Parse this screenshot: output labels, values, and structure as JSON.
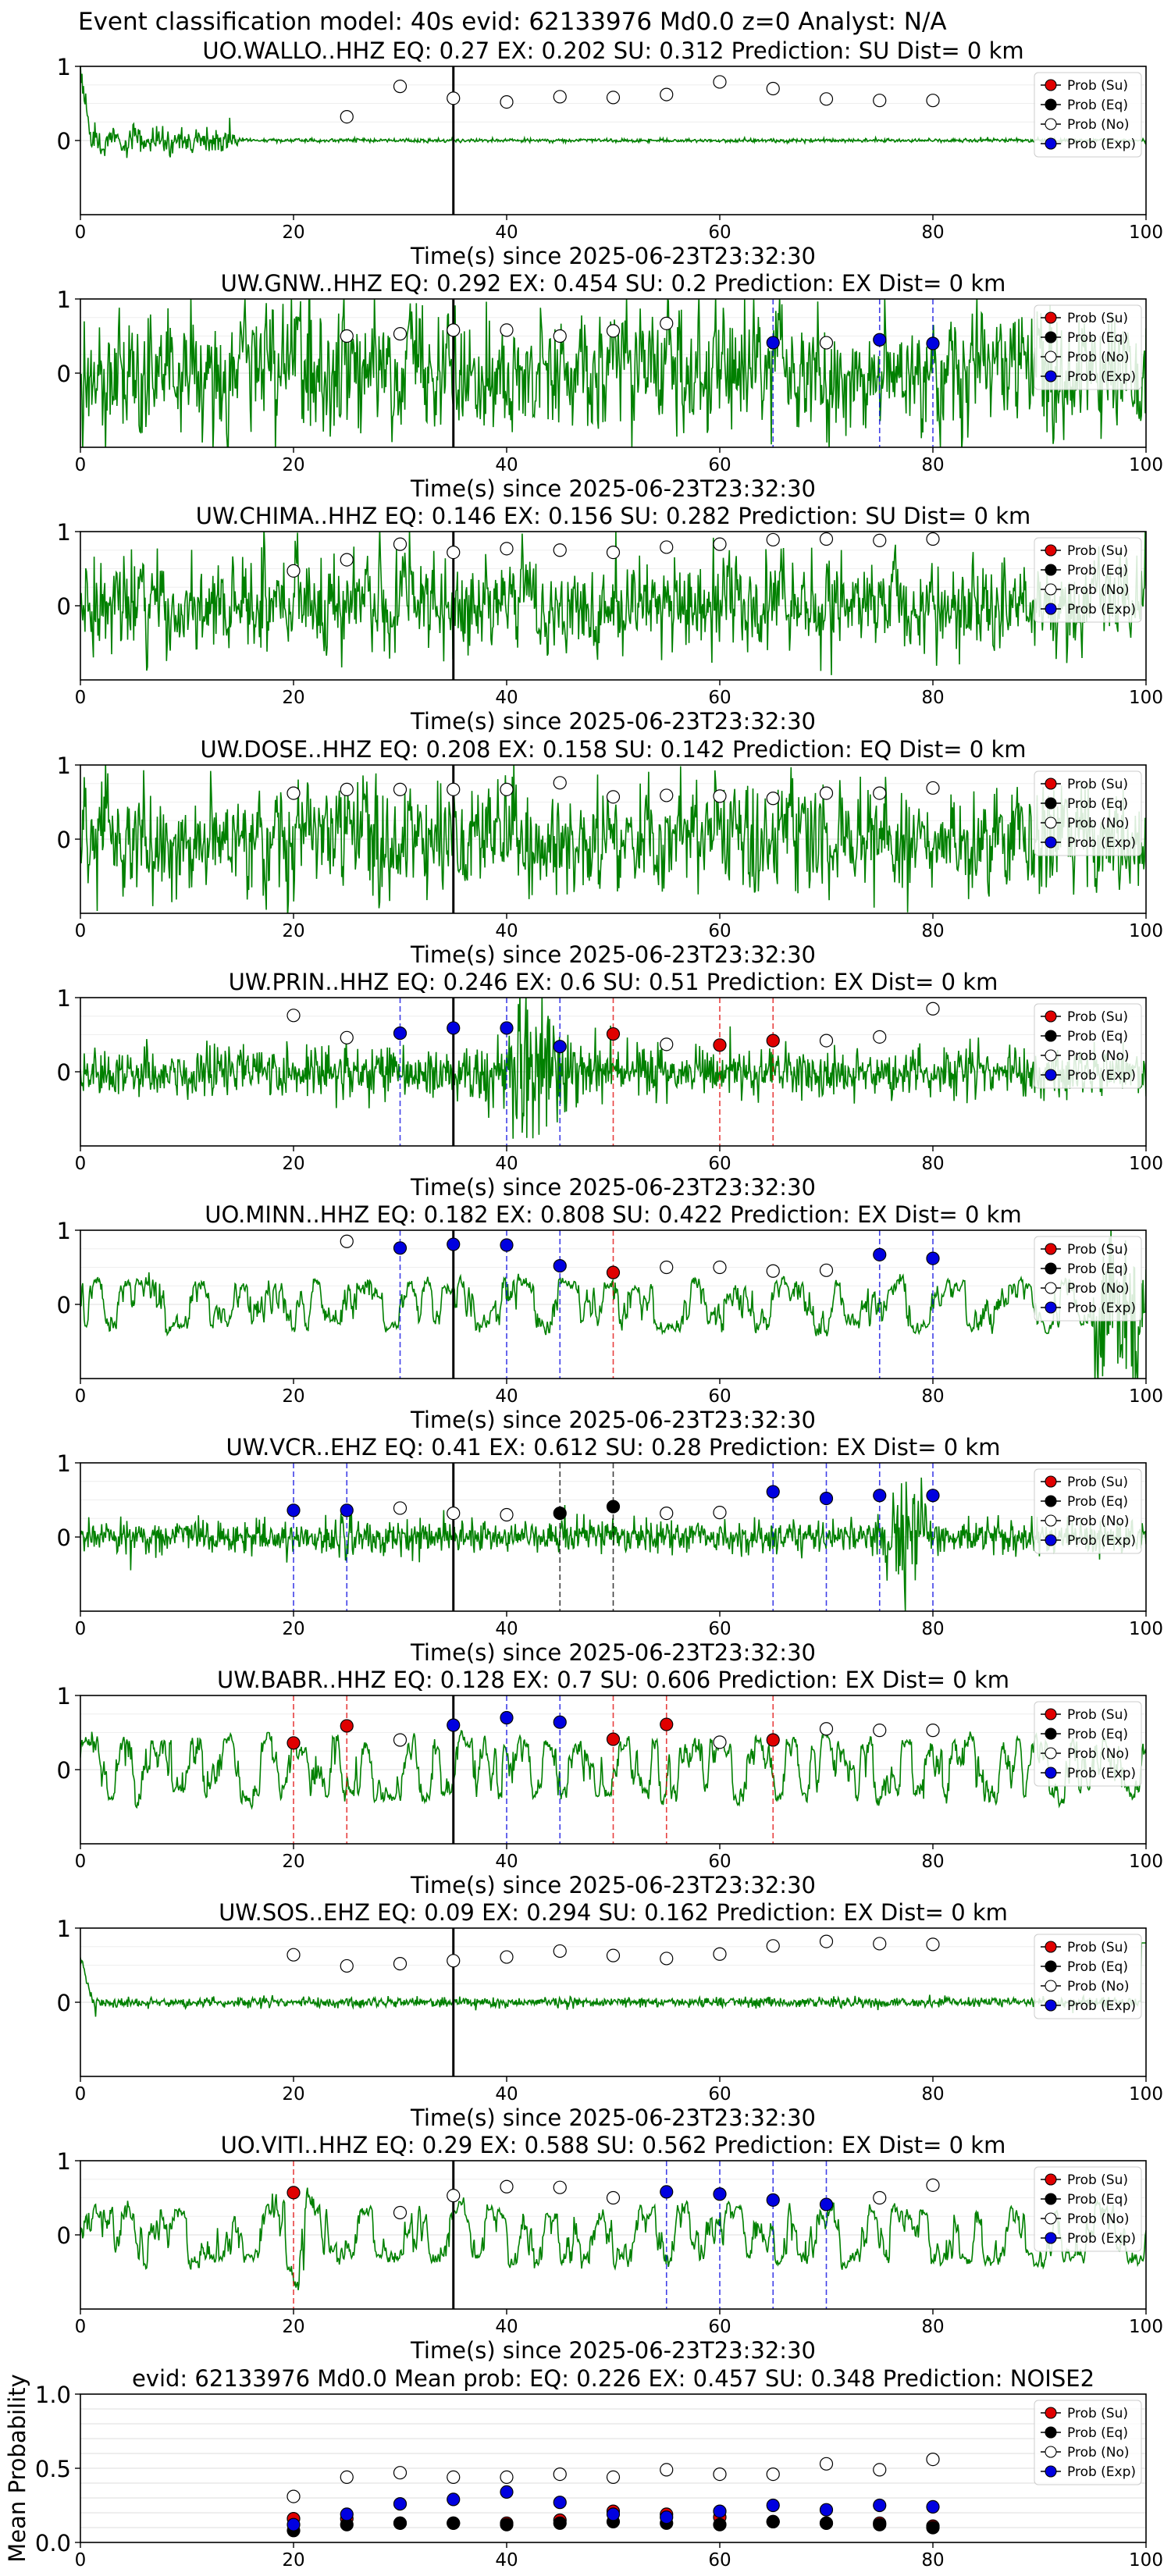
{
  "figure_title": "Event classification model: 40s evid: 62133976 Md0.0 z=0 Analyst: N/A",
  "axis_xlabel": "Time(s) since 2025-06-23T23:32:30",
  "legend": [
    {
      "label": "Prob (Su)",
      "color": "#e00000"
    },
    {
      "label": "Prob (Eq)",
      "color": "#000000"
    },
    {
      "label": "Prob (No)",
      "color": "#ffffff"
    },
    {
      "label": "Prob (Exp)",
      "color": "#0000e0"
    }
  ],
  "colors": {
    "waveform": "#008000",
    "marker_line": "#000000",
    "grid": "#dddddd"
  },
  "chart_data": [
    {
      "type": "line",
      "title": "UO.WALLO..HHZ   EQ: 0.27  EX: 0.202  SU: 0.312   Prediction: SU    Dist= 0 km",
      "station": "UO.WALLO..HHZ",
      "eq": 0.27,
      "ex": 0.202,
      "su": 0.312,
      "prediction": "SU",
      "dist": "0 km",
      "xlim": [
        0,
        100
      ],
      "ylim": [
        -1,
        1
      ],
      "xticks": [
        0,
        20,
        40,
        60,
        80,
        100
      ],
      "yticks": [
        0,
        1
      ],
      "signal": "decay",
      "amplitude": 0.05,
      "seed": 3,
      "arrival_time": 35,
      "points": [
        {
          "x": 25,
          "y": 0.32,
          "cls": "No"
        },
        {
          "x": 30,
          "y": 0.73,
          "cls": "No"
        },
        {
          "x": 35,
          "y": 0.57,
          "cls": "No"
        },
        {
          "x": 40,
          "y": 0.52,
          "cls": "No"
        },
        {
          "x": 45,
          "y": 0.59,
          "cls": "No"
        },
        {
          "x": 50,
          "y": 0.58,
          "cls": "No"
        },
        {
          "x": 55,
          "y": 0.62,
          "cls": "No"
        },
        {
          "x": 60,
          "y": 0.79,
          "cls": "No"
        },
        {
          "x": 65,
          "y": 0.7,
          "cls": "No"
        },
        {
          "x": 70,
          "y": 0.56,
          "cls": "No"
        },
        {
          "x": 75,
          "y": 0.54,
          "cls": "No"
        },
        {
          "x": 80,
          "y": 0.54,
          "cls": "No"
        }
      ]
    },
    {
      "type": "line",
      "title": "UW.GNW..HHZ   EQ: 0.292  EX: 0.454  SU: 0.2   Prediction: EX    Dist= 0 km",
      "station": "UW.GNW..HHZ",
      "eq": 0.292,
      "ex": 0.454,
      "su": 0.2,
      "prediction": "EX",
      "dist": "0 km",
      "xlim": [
        0,
        100
      ],
      "ylim": [
        -1,
        1
      ],
      "xticks": [
        0,
        20,
        40,
        60,
        80,
        100
      ],
      "yticks": [
        0,
        1
      ],
      "signal": "noisy",
      "amplitude": 0.55,
      "seed": 7,
      "arrival_time": 35,
      "points": [
        {
          "x": 25,
          "y": 0.5,
          "cls": "No"
        },
        {
          "x": 30,
          "y": 0.53,
          "cls": "No"
        },
        {
          "x": 35,
          "y": 0.58,
          "cls": "No"
        },
        {
          "x": 40,
          "y": 0.58,
          "cls": "No"
        },
        {
          "x": 45,
          "y": 0.5,
          "cls": "No"
        },
        {
          "x": 50,
          "y": 0.57,
          "cls": "No"
        },
        {
          "x": 55,
          "y": 0.67,
          "cls": "No"
        },
        {
          "x": 65,
          "y": 0.41,
          "cls": "Exp"
        },
        {
          "x": 70,
          "y": 0.41,
          "cls": "No"
        },
        {
          "x": 75,
          "y": 0.45,
          "cls": "Exp"
        },
        {
          "x": 80,
          "y": 0.4,
          "cls": "Exp"
        }
      ]
    },
    {
      "type": "line",
      "title": "UW.CHIMA..HHZ   EQ: 0.146  EX: 0.156  SU: 0.282   Prediction: SU    Dist= 0 km",
      "station": "UW.CHIMA..HHZ",
      "eq": 0.146,
      "ex": 0.156,
      "su": 0.282,
      "prediction": "SU",
      "dist": "0 km",
      "xlim": [
        0,
        100
      ],
      "ylim": [
        -1,
        1
      ],
      "xticks": [
        0,
        20,
        40,
        60,
        80,
        100
      ],
      "yticks": [
        0,
        1
      ],
      "signal": "noisy",
      "amplitude": 0.4,
      "seed": 11,
      "arrival_time": 35,
      "points": [
        {
          "x": 20,
          "y": 0.47,
          "cls": "No"
        },
        {
          "x": 25,
          "y": 0.62,
          "cls": "No"
        },
        {
          "x": 30,
          "y": 0.83,
          "cls": "No"
        },
        {
          "x": 35,
          "y": 0.72,
          "cls": "No"
        },
        {
          "x": 40,
          "y": 0.77,
          "cls": "No"
        },
        {
          "x": 45,
          "y": 0.75,
          "cls": "No"
        },
        {
          "x": 50,
          "y": 0.72,
          "cls": "No"
        },
        {
          "x": 55,
          "y": 0.79,
          "cls": "No"
        },
        {
          "x": 60,
          "y": 0.83,
          "cls": "No"
        },
        {
          "x": 65,
          "y": 0.89,
          "cls": "No"
        },
        {
          "x": 70,
          "y": 0.9,
          "cls": "No"
        },
        {
          "x": 75,
          "y": 0.88,
          "cls": "No"
        },
        {
          "x": 80,
          "y": 0.9,
          "cls": "No"
        }
      ]
    },
    {
      "type": "line",
      "title": "UW.DOSE..HHZ   EQ: 0.208  EX: 0.158  SU: 0.142   Prediction: EQ    Dist= 0 km",
      "station": "UW.DOSE..HHZ",
      "eq": 0.208,
      "ex": 0.158,
      "su": 0.142,
      "prediction": "EQ",
      "dist": "0 km",
      "xlim": [
        0,
        100
      ],
      "ylim": [
        -1,
        1
      ],
      "xticks": [
        0,
        20,
        40,
        60,
        80,
        100
      ],
      "yticks": [
        0,
        1
      ],
      "signal": "noisy",
      "amplitude": 0.5,
      "seed": 19,
      "arrival_time": 35,
      "points": [
        {
          "x": 20,
          "y": 0.62,
          "cls": "No"
        },
        {
          "x": 25,
          "y": 0.67,
          "cls": "No"
        },
        {
          "x": 30,
          "y": 0.67,
          "cls": "No"
        },
        {
          "x": 35,
          "y": 0.67,
          "cls": "No"
        },
        {
          "x": 40,
          "y": 0.67,
          "cls": "No"
        },
        {
          "x": 45,
          "y": 0.76,
          "cls": "No"
        },
        {
          "x": 50,
          "y": 0.57,
          "cls": "No"
        },
        {
          "x": 55,
          "y": 0.59,
          "cls": "No"
        },
        {
          "x": 60,
          "y": 0.58,
          "cls": "No"
        },
        {
          "x": 65,
          "y": 0.55,
          "cls": "No"
        },
        {
          "x": 70,
          "y": 0.62,
          "cls": "No"
        },
        {
          "x": 75,
          "y": 0.62,
          "cls": "No"
        },
        {
          "x": 80,
          "y": 0.69,
          "cls": "No"
        }
      ]
    },
    {
      "type": "line",
      "title": "UW.PRIN..HHZ   EQ: 0.246  EX: 0.6  SU: 0.51   Prediction: EX    Dist= 0 km",
      "station": "UW.PRIN..HHZ",
      "eq": 0.246,
      "ex": 0.6,
      "su": 0.51,
      "prediction": "EX",
      "dist": "0 km",
      "xlim": [
        0,
        100
      ],
      "ylim": [
        -1,
        1
      ],
      "xticks": [
        0,
        20,
        40,
        60,
        80,
        100
      ],
      "yticks": [
        0,
        1
      ],
      "signal": "burst",
      "amplitude": 0.35,
      "seed": 23,
      "arrival_time": 35,
      "points": [
        {
          "x": 20,
          "y": 0.76,
          "cls": "No"
        },
        {
          "x": 25,
          "y": 0.46,
          "cls": "No"
        },
        {
          "x": 30,
          "y": 0.52,
          "cls": "Exp"
        },
        {
          "x": 35,
          "y": 0.59,
          "cls": "Exp"
        },
        {
          "x": 40,
          "y": 0.59,
          "cls": "Exp"
        },
        {
          "x": 45,
          "y": 0.34,
          "cls": "Exp"
        },
        {
          "x": 50,
          "y": 0.51,
          "cls": "Su"
        },
        {
          "x": 55,
          "y": 0.37,
          "cls": "No"
        },
        {
          "x": 60,
          "y": 0.36,
          "cls": "Su"
        },
        {
          "x": 65,
          "y": 0.42,
          "cls": "Su"
        },
        {
          "x": 70,
          "y": 0.42,
          "cls": "No"
        },
        {
          "x": 75,
          "y": 0.47,
          "cls": "No"
        },
        {
          "x": 80,
          "y": 0.85,
          "cls": "No"
        }
      ]
    },
    {
      "type": "line",
      "title": "UO.MINN..HHZ   EQ: 0.182  EX: 0.808  SU: 0.422   Prediction: EX    Dist= 0 km",
      "station": "UO.MINN..HHZ",
      "eq": 0.182,
      "ex": 0.808,
      "su": 0.422,
      "prediction": "EX",
      "dist": "0 km",
      "xlim": [
        0,
        100
      ],
      "ylim": [
        -1,
        1
      ],
      "xticks": [
        0,
        20,
        40,
        60,
        80,
        100
      ],
      "yticks": [
        0,
        1
      ],
      "signal": "wave",
      "amplitude": 0.45,
      "seed": 29,
      "arrival_time": 35,
      "points": [
        {
          "x": 25,
          "y": 0.85,
          "cls": "No"
        },
        {
          "x": 30,
          "y": 0.76,
          "cls": "Exp"
        },
        {
          "x": 35,
          "y": 0.81,
          "cls": "Exp"
        },
        {
          "x": 40,
          "y": 0.8,
          "cls": "Exp"
        },
        {
          "x": 45,
          "y": 0.52,
          "cls": "Exp"
        },
        {
          "x": 50,
          "y": 0.43,
          "cls": "Su"
        },
        {
          "x": 55,
          "y": 0.5,
          "cls": "No"
        },
        {
          "x": 60,
          "y": 0.5,
          "cls": "No"
        },
        {
          "x": 65,
          "y": 0.45,
          "cls": "No"
        },
        {
          "x": 70,
          "y": 0.46,
          "cls": "No"
        },
        {
          "x": 75,
          "y": 0.67,
          "cls": "Exp"
        },
        {
          "x": 80,
          "y": 0.62,
          "cls": "Exp"
        }
      ]
    },
    {
      "type": "line",
      "title": "UW.VCR..EHZ   EQ: 0.41  EX: 0.612  SU: 0.28   Prediction: EX    Dist= 0 km",
      "station": "UW.VCR..EHZ",
      "eq": 0.41,
      "ex": 0.612,
      "su": 0.28,
      "prediction": "EX",
      "dist": "0 km",
      "xlim": [
        0,
        100
      ],
      "ylim": [
        -1,
        1
      ],
      "xticks": [
        0,
        20,
        40,
        60,
        80,
        100
      ],
      "yticks": [
        0,
        1
      ],
      "signal": "burst2",
      "amplitude": 0.22,
      "seed": 31,
      "arrival_time": 35,
      "points": [
        {
          "x": 20,
          "y": 0.36,
          "cls": "Exp"
        },
        {
          "x": 25,
          "y": 0.36,
          "cls": "Exp"
        },
        {
          "x": 30,
          "y": 0.39,
          "cls": "No"
        },
        {
          "x": 35,
          "y": 0.32,
          "cls": "No"
        },
        {
          "x": 40,
          "y": 0.3,
          "cls": "No"
        },
        {
          "x": 45,
          "y": 0.32,
          "cls": "Eq"
        },
        {
          "x": 50,
          "y": 0.41,
          "cls": "Eq"
        },
        {
          "x": 55,
          "y": 0.32,
          "cls": "No"
        },
        {
          "x": 60,
          "y": 0.33,
          "cls": "No"
        },
        {
          "x": 65,
          "y": 0.61,
          "cls": "Exp"
        },
        {
          "x": 70,
          "y": 0.52,
          "cls": "Exp"
        },
        {
          "x": 75,
          "y": 0.56,
          "cls": "Exp"
        },
        {
          "x": 80,
          "y": 0.56,
          "cls": "Exp"
        }
      ]
    },
    {
      "type": "line",
      "title": "UW.BABR..HHZ   EQ: 0.128  EX: 0.7  SU: 0.606   Prediction: EX    Dist= 0 km",
      "station": "UW.BABR..HHZ",
      "eq": 0.128,
      "ex": 0.7,
      "su": 0.606,
      "prediction": "EX",
      "dist": "0 km",
      "xlim": [
        0,
        100
      ],
      "ylim": [
        -1,
        1
      ],
      "xticks": [
        0,
        20,
        40,
        60,
        80,
        100
      ],
      "yticks": [
        0,
        1
      ],
      "signal": "wave2",
      "amplitude": 0.55,
      "seed": 37,
      "arrival_time": 35,
      "points": [
        {
          "x": 20,
          "y": 0.36,
          "cls": "Su"
        },
        {
          "x": 25,
          "y": 0.59,
          "cls": "Su"
        },
        {
          "x": 30,
          "y": 0.4,
          "cls": "No"
        },
        {
          "x": 35,
          "y": 0.6,
          "cls": "Exp"
        },
        {
          "x": 40,
          "y": 0.7,
          "cls": "Exp"
        },
        {
          "x": 45,
          "y": 0.64,
          "cls": "Exp"
        },
        {
          "x": 50,
          "y": 0.41,
          "cls": "Su"
        },
        {
          "x": 55,
          "y": 0.61,
          "cls": "Su"
        },
        {
          "x": 60,
          "y": 0.37,
          "cls": "No"
        },
        {
          "x": 65,
          "y": 0.4,
          "cls": "Su"
        },
        {
          "x": 70,
          "y": 0.55,
          "cls": "No"
        },
        {
          "x": 75,
          "y": 0.53,
          "cls": "No"
        },
        {
          "x": 80,
          "y": 0.53,
          "cls": "No"
        }
      ]
    },
    {
      "type": "line",
      "title": "UW.SOS..EHZ   EQ: 0.09  EX: 0.294  SU: 0.162   Prediction: EX    Dist= 0 km",
      "station": "UW.SOS..EHZ",
      "eq": 0.09,
      "ex": 0.294,
      "su": 0.162,
      "prediction": "EX",
      "dist": "0 km",
      "xlim": [
        0,
        100
      ],
      "ylim": [
        -1,
        1
      ],
      "xticks": [
        0,
        20,
        40,
        60,
        80,
        100
      ],
      "yticks": [
        0,
        1
      ],
      "signal": "flat",
      "amplitude": 0.06,
      "seed": 41,
      "arrival_time": 35,
      "points": [
        {
          "x": 20,
          "y": 0.64,
          "cls": "No"
        },
        {
          "x": 25,
          "y": 0.49,
          "cls": "No"
        },
        {
          "x": 30,
          "y": 0.52,
          "cls": "No"
        },
        {
          "x": 35,
          "y": 0.56,
          "cls": "No"
        },
        {
          "x": 40,
          "y": 0.61,
          "cls": "No"
        },
        {
          "x": 45,
          "y": 0.69,
          "cls": "No"
        },
        {
          "x": 50,
          "y": 0.63,
          "cls": "No"
        },
        {
          "x": 55,
          "y": 0.59,
          "cls": "No"
        },
        {
          "x": 60,
          "y": 0.65,
          "cls": "No"
        },
        {
          "x": 65,
          "y": 0.76,
          "cls": "No"
        },
        {
          "x": 70,
          "y": 0.82,
          "cls": "No"
        },
        {
          "x": 75,
          "y": 0.79,
          "cls": "No"
        },
        {
          "x": 80,
          "y": 0.78,
          "cls": "No"
        }
      ]
    },
    {
      "type": "line",
      "title": "UO.VITI..HHZ   EQ: 0.29  EX: 0.588  SU: 0.562   Prediction: EX    Dist= 0 km",
      "station": "UO.VITI..HHZ",
      "eq": 0.29,
      "ex": 0.588,
      "su": 0.562,
      "prediction": "EX",
      "dist": "0 km",
      "xlim": [
        0,
        100
      ],
      "ylim": [
        -1,
        1
      ],
      "xticks": [
        0,
        20,
        40,
        60,
        80,
        100
      ],
      "yticks": [
        0,
        1
      ],
      "signal": "wave3",
      "amplitude": 0.5,
      "seed": 43,
      "arrival_time": 35,
      "points": [
        {
          "x": 20,
          "y": 0.57,
          "cls": "Su"
        },
        {
          "x": 30,
          "y": 0.3,
          "cls": "No"
        },
        {
          "x": 35,
          "y": 0.53,
          "cls": "No"
        },
        {
          "x": 40,
          "y": 0.65,
          "cls": "No"
        },
        {
          "x": 45,
          "y": 0.64,
          "cls": "No"
        },
        {
          "x": 50,
          "y": 0.5,
          "cls": "No"
        },
        {
          "x": 55,
          "y": 0.58,
          "cls": "Exp"
        },
        {
          "x": 60,
          "y": 0.55,
          "cls": "Exp"
        },
        {
          "x": 65,
          "y": 0.47,
          "cls": "Exp"
        },
        {
          "x": 70,
          "y": 0.41,
          "cls": "Exp"
        },
        {
          "x": 75,
          "y": 0.5,
          "cls": "No"
        },
        {
          "x": 80,
          "y": 0.67,
          "cls": "No"
        }
      ]
    },
    {
      "type": "scatter",
      "title": "evid: 62133976  Md0.0   Mean prob:   EQ: 0.226  EX: 0.457  SU: 0.348   Prediction: NOISE2",
      "ylabel": "Mean Probability",
      "xlim": [
        0,
        100
      ],
      "ylim": [
        0,
        1
      ],
      "xticks": [
        0,
        20,
        40,
        60,
        80,
        100
      ],
      "yticks": [
        0.0,
        0.5,
        1.0
      ],
      "ytick_labels": [
        "0.0",
        "0.5",
        "1.0"
      ],
      "x": [
        20,
        25,
        30,
        35,
        40,
        45,
        50,
        55,
        60,
        65,
        70,
        75,
        80
      ],
      "series": [
        {
          "name": "Prob (Su)",
          "cls": "Su",
          "values": [
            0.16,
            0.16,
            0.13,
            0.13,
            0.13,
            0.15,
            0.21,
            0.19,
            0.17,
            0.14,
            0.13,
            0.13,
            0.11
          ]
        },
        {
          "name": "Prob (Eq)",
          "cls": "Eq",
          "values": [
            0.08,
            0.12,
            0.13,
            0.13,
            0.12,
            0.13,
            0.14,
            0.13,
            0.12,
            0.14,
            0.13,
            0.12,
            0.1
          ]
        },
        {
          "name": "Prob (No)",
          "cls": "No",
          "values": [
            0.31,
            0.44,
            0.47,
            0.44,
            0.44,
            0.46,
            0.44,
            0.49,
            0.46,
            0.46,
            0.53,
            0.49,
            0.56
          ]
        },
        {
          "name": "Prob (Exp)",
          "cls": "Exp",
          "values": [
            0.12,
            0.19,
            0.26,
            0.29,
            0.34,
            0.27,
            0.19,
            0.17,
            0.21,
            0.25,
            0.22,
            0.25,
            0.24
          ]
        }
      ]
    }
  ]
}
